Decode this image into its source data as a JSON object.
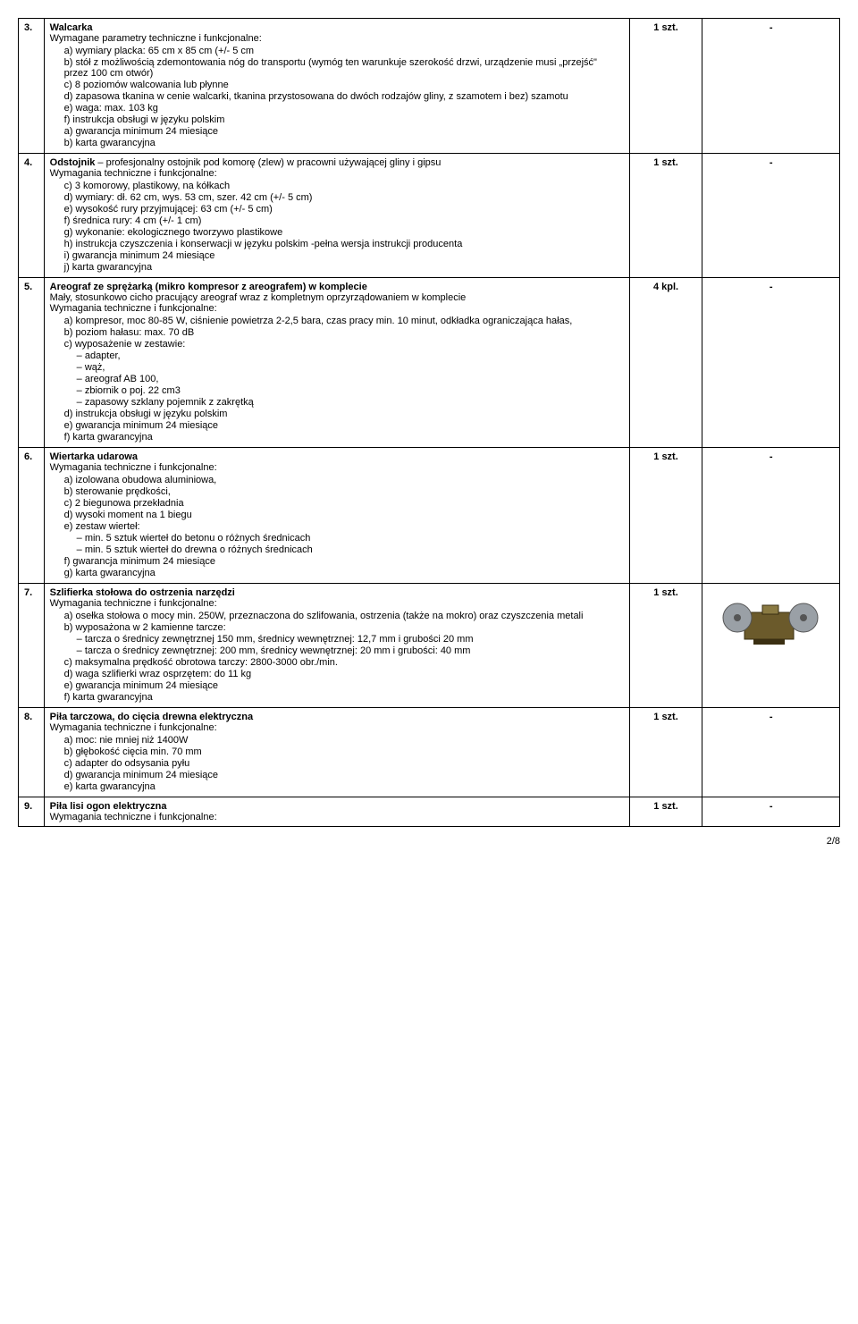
{
  "page_number": "2/8",
  "rows": [
    {
      "n": "3.",
      "title": "Walcarka",
      "intro": "Wymagane parametry techniczne i funkcjonalne:",
      "items": [
        {
          "l": "a)",
          "t": "wymiary placka: 65 cm x 85 cm (+/- 5 cm"
        },
        {
          "l": "b)",
          "t": "stół z możliwością zdemontowania nóg do transportu (wymóg ten warunkuje szerokość drzwi, urządzenie musi „przejść\" przez 100 cm otwór)"
        },
        {
          "l": "c)",
          "t": "8 poziomów walcowania lub płynne"
        },
        {
          "l": "d)",
          "t": "zapasowa tkanina w cenie walcarki, tkanina przystosowana do  dwóch rodzajów gliny, z szamotem i bez) szamotu"
        },
        {
          "l": "e)",
          "t": "waga: max. 103 kg"
        },
        {
          "l": "f)",
          "t": "instrukcja obsługi w języku polskim"
        },
        {
          "l": "a)",
          "t": "gwarancja minimum 24 miesiące"
        },
        {
          "l": "b)",
          "t": "karta gwarancyjna"
        }
      ],
      "qty": "1 szt.",
      "img": "-"
    },
    {
      "n": "4.",
      "title_html": "Odstojnik",
      "title_tail": " – profesjonalny ostojnik pod komorę (zlew) w pracowni używającej gliny i gipsu",
      "intro": "Wymagania techniczne i funkcjonalne:",
      "items": [
        {
          "l": "c)",
          "t": "3 komorowy, plastikowy, na kółkach"
        },
        {
          "l": "d)",
          "t": "wymiary: dł. 62 cm, wys. 53 cm, szer. 42 cm (+/- 5 cm)"
        },
        {
          "l": "e)",
          "t": "wysokość rury przyjmującej: 63 cm (+/- 5 cm)"
        },
        {
          "l": "f)",
          "t": "średnica rury: 4 cm (+/- 1 cm)"
        },
        {
          "l": "g)",
          "t": "wykonanie: ekologicznego tworzywo plastikowe"
        },
        {
          "l": "h)",
          "t": "instrukcja czyszczenia i konserwacji w języku polskim -pełna wersja instrukcji producenta"
        },
        {
          "l": "i)",
          "t": "gwarancja minimum 24 miesiące"
        },
        {
          "l": "j)",
          "t": "karta gwarancyjna"
        }
      ],
      "qty": "1 szt.",
      "img": "-"
    },
    {
      "n": "5.",
      "title": "Areograf ze sprężarką (mikro kompresor z areografem) w komplecie",
      "subtitle": "Mały, stosunkowo cicho pracujący areograf wraz z kompletnym oprzyrządowaniem w komplecie",
      "intro": "Wymagania techniczne i funkcjonalne:",
      "items": [
        {
          "l": "a)",
          "t": "kompresor, moc 80-85 W, ciśnienie powietrza 2-2,5 bara, czas pracy min. 10 minut, odkładka ograniczająca hałas,"
        },
        {
          "l": "b)",
          "t": "poziom hałasu: max. 70 dB"
        },
        {
          "l": "c)",
          "t": "wyposażenie w zestawie:",
          "sub": [
            "adapter,",
            "wąż,",
            "areograf AB 100,",
            "zbiornik o poj. 22 cm3",
            "zapasowy szklany pojemnik z zakrętką"
          ]
        },
        {
          "l": "d)",
          "t": "instrukcja obsługi w języku polskim"
        },
        {
          "l": "e)",
          "t": "gwarancja minimum 24 miesiące"
        },
        {
          "l": "f)",
          "t": "karta gwarancyjna"
        }
      ],
      "qty": "4 kpl.",
      "img": "-"
    },
    {
      "n": "6.",
      "title": "Wiertarka udarowa",
      "intro": "Wymagania techniczne i funkcjonalne:",
      "items": [
        {
          "l": "a)",
          "t": "izolowana obudowa aluminiowa,"
        },
        {
          "l": "b)",
          "t": "sterowanie prędkości,"
        },
        {
          "l": "c)",
          "t": "2 biegunowa przekładnia"
        },
        {
          "l": "d)",
          "t": "wysoki moment na 1 biegu"
        },
        {
          "l": "e)",
          "t": "zestaw wierteł:",
          "sub": [
            "min. 5 sztuk wierteł do betonu o różnych średnicach",
            "min. 5 sztuk wierteł do drewna o różnych średnicach"
          ]
        },
        {
          "l": "f)",
          "t": "gwarancja minimum 24 miesiące"
        },
        {
          "l": "g)",
          "t": "karta gwarancyjna"
        }
      ],
      "qty": "1 szt.",
      "img": "-"
    },
    {
      "n": "7.",
      "title": "Szlifierka stołowa do ostrzenia narzędzi",
      "intro": "Wymagania techniczne i funkcjonalne:",
      "items": [
        {
          "l": "a)",
          "t": "osełka stołowa o mocy min. 250W, przeznaczona do szlifowania, ostrzenia (także na mokro) oraz czyszczenia metali"
        },
        {
          "l": "b)",
          "t": "wyposażona w 2 kamienne tarcze:",
          "sub": [
            "tarcza o średnicy zewnętrznej 150 mm, średnicy wewnętrznej: 12,7 mm i grubości 20 mm",
            "tarcza o średnicy zewnętrznej: 200 mm, średnicy wewnętrznej: 20 mm i grubości: 40 mm"
          ]
        },
        {
          "l": "c)",
          "t": "maksymalna prędkość obrotowa tarczy: 2800-3000 obr./min."
        },
        {
          "l": "d)",
          "t": "waga szlifierki wraz osprzętem: do 11 kg"
        },
        {
          "l": "e)",
          "t": "gwarancja minimum 24 miesiące"
        },
        {
          "l": "f)",
          "t": "karta gwarancyjna"
        }
      ],
      "qty": "1 szt.",
      "img": "grinder"
    },
    {
      "n": "8.",
      "title": "Piła tarczowa, do cięcia drewna elektryczna",
      "intro": "Wymagania techniczne i funkcjonalne:",
      "items": [
        {
          "l": "a)",
          "t": "moc: nie mniej niż 1400W"
        },
        {
          "l": "b)",
          "t": "głębokość cięcia min. 70 mm"
        },
        {
          "l": "c)",
          "t": "adapter do odsysania  pyłu"
        },
        {
          "l": "d)",
          "t": "gwarancja minimum 24 miesiące"
        },
        {
          "l": "e)",
          "t": "karta gwarancyjna"
        }
      ],
      "qty": "1 szt.",
      "img": "-"
    },
    {
      "n": "9.",
      "title": "Piła lisi ogon elektryczna",
      "intro": "Wymagania techniczne i funkcjonalne:",
      "items": [],
      "qty": "1 szt.",
      "img": "-"
    }
  ]
}
